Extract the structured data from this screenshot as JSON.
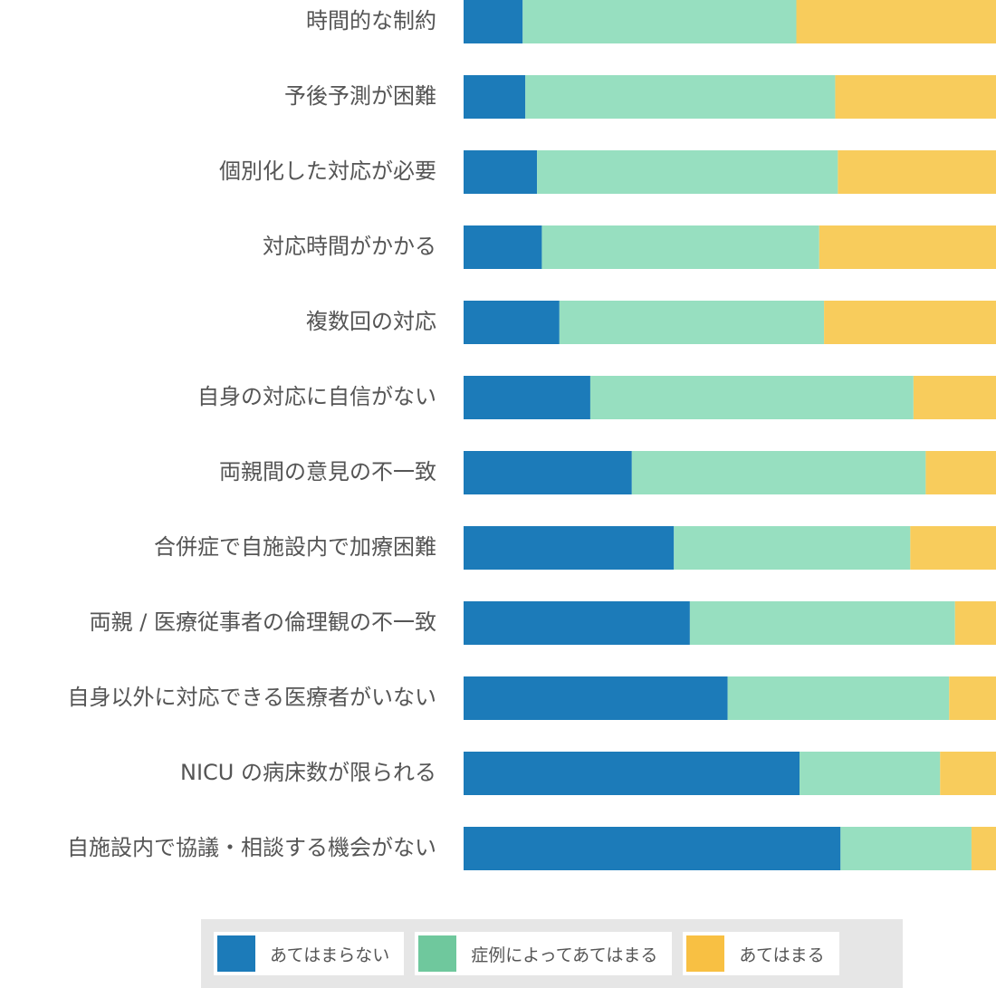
{
  "chart_data": {
    "type": "bar",
    "orientation": "horizontal",
    "stacked": true,
    "normalized": true,
    "categories": [
      "時間的な制約",
      "予後予測が困難",
      "個別化した対応が必要",
      "対応時間がかかる",
      "複数回の対応",
      "自身の対応に自信がない",
      "両親間の意見の不一致",
      "合併症で自施設内で加療困難",
      "両親 / 医療従事者の倫理観の不一致",
      "自身以外に対応できる医療者がいない",
      "NICU の病床数が限られる",
      "自施設内で協議・相談する機会がない"
    ],
    "series": [
      {
        "name": "あてはまらない",
        "color": "#1c7bb9",
        "values": [
          11.1,
          11.6,
          13.8,
          14.7,
          18.0,
          23.8,
          31.6,
          39.5,
          42.5,
          49.6,
          63.1,
          70.8
        ]
      },
      {
        "name": "症例によってあてはまる",
        "color": "#97dfc0",
        "values": [
          51.4,
          58.2,
          56.5,
          52.1,
          49.7,
          60.7,
          55.2,
          44.4,
          49.8,
          41.6,
          26.4,
          24.6
        ]
      },
      {
        "name": "あてはまる",
        "color": "#f8cc5c",
        "values": [
          37.5,
          30.2,
          29.7,
          33.2,
          32.3,
          15.5,
          13.2,
          16.1,
          7.7,
          8.8,
          10.5,
          4.6
        ]
      }
    ],
    "xlim": [
      0,
      100
    ],
    "grid": false,
    "legend_position": "bottom"
  },
  "legend": {
    "items": [
      {
        "label": "あてはまらない",
        "color": "#1c7bb9"
      },
      {
        "label": "症例によってあてはまる",
        "color": "#6fc89d"
      },
      {
        "label": "あてはまる",
        "color": "#f8c043"
      }
    ]
  }
}
